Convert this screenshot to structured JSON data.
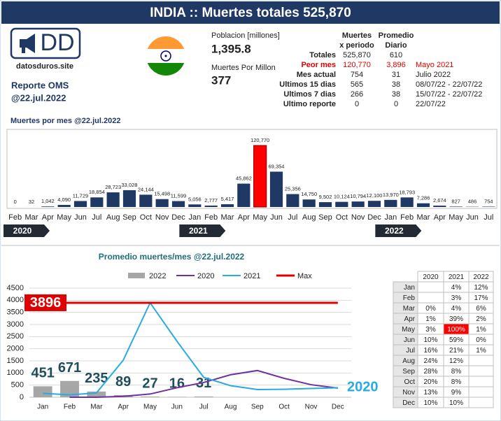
{
  "header": {
    "title": "INDIA :: Muertes totales 525,870"
  },
  "logo": {
    "text": "DD",
    "site": "datosduros.site"
  },
  "report": {
    "title": "Reporte OMS",
    "date": "@22.jul.2022"
  },
  "population": {
    "label": "Poblacion [millones]",
    "value": "1,395.8"
  },
  "per_million": {
    "label": "Muertes Por Millon",
    "value": "377"
  },
  "stats": {
    "headers": [
      [
        "Muertes",
        "x periodo"
      ],
      [
        "Promedio",
        "Diario"
      ]
    ],
    "rows": [
      {
        "cells": [
          "Totales",
          "525,870",
          "610"
        ]
      },
      {
        "cells": [
          "Peor mes",
          "120,770",
          "3,896",
          "Mayo 2021"
        ],
        "color": "#e00000"
      },
      {
        "cells": [
          "Mes actual",
          "754",
          "31",
          "Julio 2022"
        ]
      },
      {
        "cells": [
          "Ultimos 15 dias",
          "565",
          "38",
          "08/07/22 - 22/07/22"
        ]
      },
      {
        "cells": [
          "Ultimos 7 dias",
          "266",
          "38",
          "15/07/22 - 22/07/22"
        ]
      },
      {
        "cells": [
          "Ultimo reporte",
          "0",
          "0",
          "22/07/22"
        ]
      }
    ]
  },
  "chart_data": [
    {
      "type": "bar",
      "title": "Muertes por mes @22.jul.2022",
      "categories": [
        "Feb",
        "Mar",
        "Apr",
        "May",
        "Jun",
        "Jul",
        "Aug",
        "Sep",
        "Oct",
        "Nov",
        "Dec",
        "Jan",
        "Feb",
        "Mar",
        "Apr",
        "May",
        "Jun",
        "Jul",
        "Aug",
        "Sep",
        "Oct",
        "Nov",
        "Dec",
        "Jan",
        "Feb",
        "Mar",
        "Apr",
        "May",
        "Jun",
        "Jul"
      ],
      "years": [
        "2020",
        "2021",
        "2022"
      ],
      "values": [
        0,
        32,
        1042,
        4090,
        11729,
        18854,
        28723,
        33028,
        24144,
        15498,
        11599,
        5056,
        2777,
        5417,
        45862,
        120770,
        69354,
        25356,
        14750,
        9502,
        10124,
        10794,
        12100,
        13970,
        18793,
        7286,
        2674,
        827,
        486,
        754
      ],
      "value_labels": [
        "0",
        "32",
        "1,042",
        "4,090",
        "11,729",
        "18,854",
        "28,723",
        "33,028",
        "24,144",
        "15,498",
        "11,599",
        "5,056",
        "2,777",
        "5,417",
        "45,862",
        "120,770",
        "69,354",
        "25,356",
        "14,750",
        "9,502",
        "10,124",
        "10,794",
        "12,100",
        "13,970",
        "18,793",
        "7,286",
        "2,674",
        "827",
        "486",
        "754"
      ],
      "color": "#1f3864",
      "peak_color": "#ff0000"
    },
    {
      "type": "line",
      "title": "Promedio muertes/mes @22.jul.2022",
      "categories": [
        "Jan",
        "Feb",
        "Mar",
        "Apr",
        "May",
        "Jun",
        "Jul",
        "Aug",
        "Sep",
        "Oct",
        "Nov",
        "Dec"
      ],
      "ylim": [
        0,
        4500
      ],
      "yticks": [
        0,
        500,
        1000,
        1500,
        2000,
        2500,
        3000,
        3500,
        4000,
        4500
      ],
      "grid": true,
      "series": [
        {
          "name": "2022",
          "type": "bar",
          "color": "#a6a6a6",
          "values": [
            451,
            671,
            235,
            89,
            27,
            16,
            31,
            null,
            null,
            null,
            null,
            null
          ]
        },
        {
          "name": "2020",
          "type": "line",
          "color": "#7030a0",
          "values": [
            null,
            0,
            1,
            35,
            132,
            391,
            608,
            927,
            1101,
            779,
            517,
            374
          ]
        },
        {
          "name": "2021",
          "type": "line",
          "color": "#29abe2",
          "values": [
            163,
            99,
            175,
            1529,
            3896,
            2312,
            818,
            476,
            317,
            327,
            360,
            391
          ]
        },
        {
          "name": "Max",
          "type": "hline",
          "color": "#e00000",
          "value": 3896,
          "label": "3896"
        }
      ],
      "annotations": [
        "2020"
      ]
    }
  ],
  "pct_table": {
    "columns": [
      "2020",
      "2021",
      "2022"
    ],
    "rows": [
      [
        "Jan",
        null,
        "4%",
        "12%"
      ],
      [
        "Feb",
        null,
        "3%",
        "17%"
      ],
      [
        "Mar",
        "0%",
        "4%",
        "6%"
      ],
      [
        "Apr",
        "1%",
        "39%",
        "2%"
      ],
      [
        "May",
        "3%",
        "100%",
        "1%"
      ],
      [
        "Jun",
        "10%",
        "59%",
        "0%"
      ],
      [
        "Jul",
        "16%",
        "21%",
        "1%"
      ],
      [
        "Aug",
        "24%",
        "12%",
        null
      ],
      [
        "Sep",
        "28%",
        "8%",
        null
      ],
      [
        "Oct",
        "20%",
        "8%",
        null
      ],
      [
        "Nov",
        "13%",
        "9%",
        null
      ],
      [
        "Dec",
        "10%",
        "10%",
        null
      ]
    ],
    "highlight_color": "#ff0000"
  }
}
